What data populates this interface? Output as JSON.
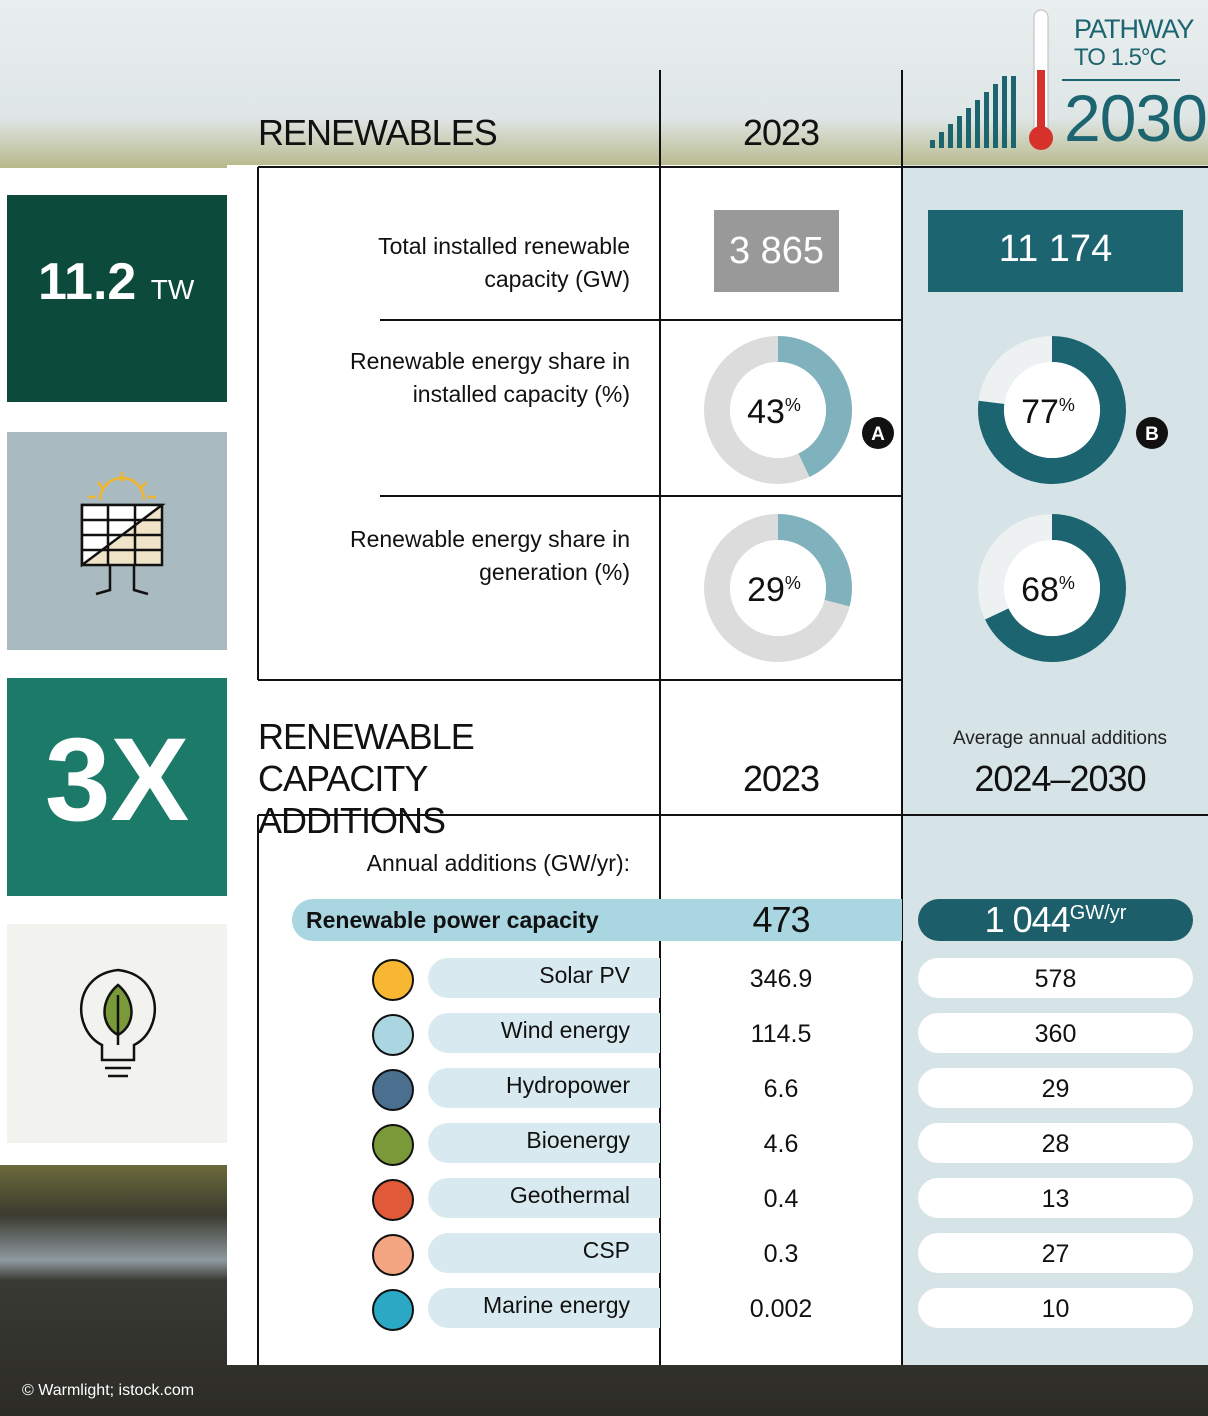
{
  "header": {
    "pathway_line1": "PATHWAY",
    "pathway_line2": "TO 1.5°C",
    "target_year": "2030"
  },
  "sidebar": {
    "stat_value": "11.2",
    "stat_unit": "TW",
    "multiplier": "3X",
    "credit": "© Warmlight; istock.com"
  },
  "renewables": {
    "title": "RENEWABLES",
    "col_2023": "2023",
    "capacity": {
      "label": "Total installed renewable capacity (GW)",
      "value_2023": "3 865",
      "value_2030": "11 174"
    },
    "share_unit": "%",
    "shares": [
      {
        "label": "Renewable energy share in installed capacity (%)",
        "value_2023": 43,
        "value_2030": 77,
        "badge_2023": "A",
        "badge_2030": "B"
      },
      {
        "label": "Renewable energy share in generation (%)",
        "value_2023": 29,
        "value_2030": 68
      }
    ]
  },
  "additions": {
    "title": "RENEWABLE CAPACITY ADDITIONS",
    "col_2023": "2023",
    "col_note": "Average annual additions",
    "col_period": "2024–2030",
    "unit_label": "Annual additions (GW/yr):",
    "total": {
      "label": "Renewable power capacity",
      "value_2023": 473,
      "value_2030": "1 044",
      "unit": "GW/yr"
    },
    "rows": [
      {
        "label": "Solar PV",
        "value_2023": 346.9,
        "value_2030": 578
      },
      {
        "label": "Wind energy",
        "value_2023": 114.5,
        "value_2030": 360
      },
      {
        "label": "Hydropower",
        "value_2023": 6.6,
        "value_2030": 29
      },
      {
        "label": "Bioenergy",
        "value_2023": 4.6,
        "value_2030": 28
      },
      {
        "label": "Geothermal",
        "value_2023": 0.4,
        "value_2030": 13
      },
      {
        "label": "CSP",
        "value_2023": 0.3,
        "value_2030": 27
      },
      {
        "label": "Marine energy",
        "value_2023": 0.002,
        "value_2030": 10
      }
    ]
  }
}
